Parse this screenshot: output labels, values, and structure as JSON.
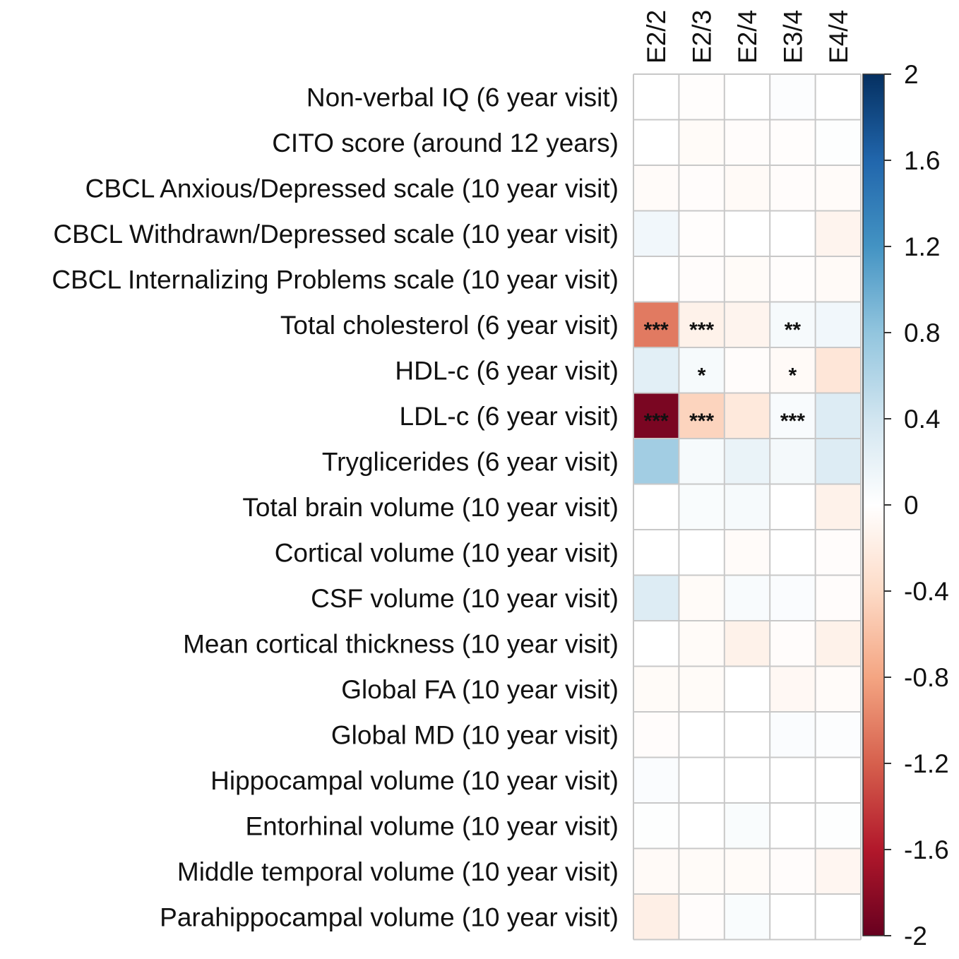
{
  "chart_data": {
    "type": "heatmap",
    "title": "",
    "columns": [
      "E2/2",
      "E2/3",
      "E2/4",
      "E3/4",
      "E4/4"
    ],
    "rows": [
      "Non-verbal IQ (6 year visit)",
      "CITO score (around 12 years)",
      "CBCL Anxious/Depressed scale (10 year visit)",
      "CBCL Withdrawn/Depressed scale (10 year visit)",
      "CBCL Internalizing Problems scale (10 year visit)",
      "Total cholesterol (6 year visit)",
      "HDL-c (6 year visit)",
      "LDL-c (6 year visit)",
      "Tryglicerides (6 year visit)",
      "Total brain volume (10 year visit)",
      "Cortical volume (10 year visit)",
      "CSF volume (10 year visit)",
      "Mean cortical thickness (10 year visit)",
      "Global FA (10 year visit)",
      "Global MD (10 year visit)",
      "Hippocampal volume (10 year visit)",
      "Entorhinal volume (10 year visit)",
      "Middle temporal volume (10 year visit)",
      "Parahippocampal volume (10 year visit)"
    ],
    "values": [
      [
        0.0,
        -0.02,
        0.0,
        0.03,
        0.0
      ],
      [
        0.0,
        -0.05,
        -0.03,
        -0.02,
        0.02
      ],
      [
        -0.04,
        -0.03,
        -0.06,
        -0.03,
        -0.04
      ],
      [
        0.12,
        -0.02,
        0.0,
        0.0,
        -0.12
      ],
      [
        0.0,
        -0.03,
        -0.05,
        -0.02,
        -0.06
      ],
      [
        -1.05,
        -0.15,
        -0.12,
        0.08,
        0.12
      ],
      [
        0.25,
        0.08,
        -0.03,
        -0.06,
        -0.28
      ],
      [
        -1.9,
        -0.45,
        -0.25,
        0.06,
        0.3
      ],
      [
        0.7,
        0.08,
        0.18,
        0.1,
        0.3
      ],
      [
        0.0,
        0.05,
        0.08,
        0.0,
        -0.15
      ],
      [
        0.0,
        0.0,
        -0.04,
        0.0,
        -0.03
      ],
      [
        0.3,
        -0.05,
        0.06,
        0.04,
        -0.03
      ],
      [
        0.0,
        -0.05,
        -0.15,
        -0.03,
        -0.15
      ],
      [
        -0.05,
        -0.05,
        0.0,
        -0.08,
        -0.04
      ],
      [
        -0.03,
        0.0,
        0.0,
        0.04,
        0.03
      ],
      [
        0.04,
        0.0,
        0.0,
        0.0,
        0.0
      ],
      [
        0.02,
        0.0,
        0.05,
        0.0,
        0.02
      ],
      [
        -0.06,
        -0.05,
        -0.05,
        -0.03,
        -0.1
      ],
      [
        -0.18,
        -0.03,
        0.05,
        0.0,
        0.0
      ]
    ],
    "significance": [
      [
        "",
        "",
        "",
        "",
        ""
      ],
      [
        "",
        "",
        "",
        "",
        ""
      ],
      [
        "",
        "",
        "",
        "",
        ""
      ],
      [
        "",
        "",
        "",
        "",
        ""
      ],
      [
        "",
        "",
        "",
        "",
        ""
      ],
      [
        "***",
        "***",
        "",
        "**",
        ""
      ],
      [
        "",
        "*",
        "",
        "*",
        ""
      ],
      [
        "***",
        "***",
        "",
        "***",
        ""
      ],
      [
        "",
        "",
        "",
        "",
        ""
      ],
      [
        "",
        "",
        "",
        "",
        ""
      ],
      [
        "",
        "",
        "",
        "",
        ""
      ],
      [
        "",
        "",
        "",
        "",
        ""
      ],
      [
        "",
        "",
        "",
        "",
        ""
      ],
      [
        "",
        "",
        "",
        "",
        ""
      ],
      [
        "",
        "",
        "",
        "",
        ""
      ],
      [
        "",
        "",
        "",
        "",
        ""
      ],
      [
        "",
        "",
        "",
        "",
        ""
      ],
      [
        "",
        "",
        "",
        "",
        ""
      ],
      [
        "",
        "",
        "",
        "",
        ""
      ]
    ],
    "colorbar": {
      "range": [
        -2,
        2
      ],
      "ticks": [
        2,
        1.6,
        1.2,
        0.8,
        0.4,
        0,
        -0.4,
        -0.8,
        -1.2,
        -1.6,
        -2
      ],
      "tick_labels": [
        "2",
        "1.6",
        "1.2",
        "0.8",
        "0.4",
        "0",
        "-0.4",
        "-0.8",
        "-1.2",
        "-1.6",
        "-2"
      ],
      "colors": [
        "#67001f",
        "#b2182b",
        "#d6604d",
        "#f4a582",
        "#fddbc7",
        "#ffffff",
        "#d1e5f0",
        "#92c5de",
        "#4393c3",
        "#2166ac",
        "#053061"
      ]
    },
    "grid_color": "#c8c8c8",
    "legend": "right"
  }
}
